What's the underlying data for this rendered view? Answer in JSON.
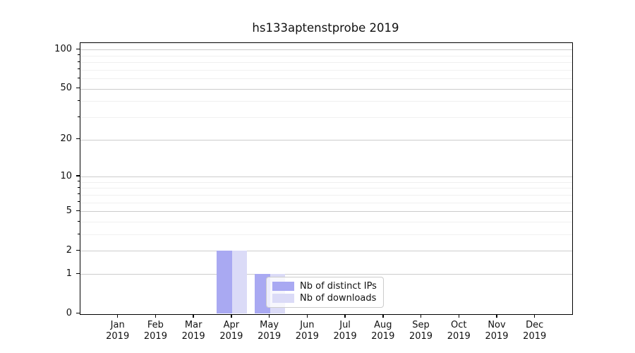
{
  "title": "hs133aptenstprobe 2019",
  "colors": {
    "series_ips": "#a9a9f2",
    "series_downloads": "#dbdbf7",
    "grid_major": "#cccccc",
    "grid_minor": "#f0f0f0",
    "axis": "#000000",
    "legend_border": "#cccccc"
  },
  "legend": {
    "items": [
      {
        "label": "Nb of distinct IPs"
      },
      {
        "label": "Nb of downloads"
      }
    ]
  },
  "chart_data": {
    "type": "bar",
    "title": "hs133aptenstprobe 2019",
    "categories": [
      "Jan",
      "Feb",
      "Mar",
      "Apr",
      "May",
      "Jun",
      "Jul",
      "Aug",
      "Sep",
      "Oct",
      "Nov",
      "Dec"
    ],
    "category_sublabel": "2019",
    "series": [
      {
        "name": "Nb of distinct IPs",
        "color": "#a9a9f2",
        "values": [
          0,
          0,
          0,
          2,
          1,
          0,
          0,
          0,
          0,
          0,
          0,
          0
        ]
      },
      {
        "name": "Nb of downloads",
        "color": "#dbdbf7",
        "values": [
          0,
          0,
          0,
          2,
          1,
          0,
          0,
          0,
          0,
          0,
          0,
          0
        ]
      }
    ],
    "y_scale": "log10(1+value)",
    "ylim": [
      0,
      113
    ],
    "y_major_ticks": [
      0,
      1,
      2,
      5,
      10,
      20,
      50,
      100
    ],
    "y_minor_gridlines": [
      3,
      4,
      6,
      7,
      8,
      9,
      30,
      40,
      60,
      70,
      80,
      90
    ],
    "grid": "both",
    "legend_position": "lower center"
  }
}
